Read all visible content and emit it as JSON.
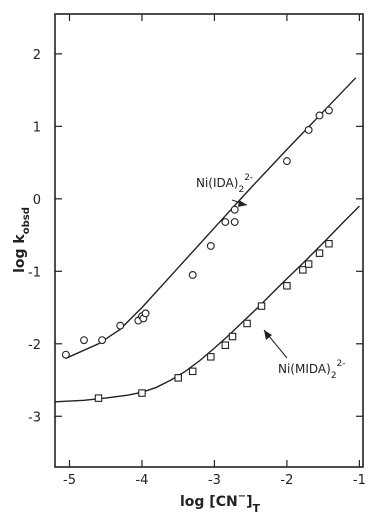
{
  "chart_data": {
    "type": "scatter",
    "xlabel": "log [CN⁻]T",
    "xlabel_main": "log [CN",
    "xlabel_sup": "−",
    "xlabel_close": "]",
    "xlabel_sub": "T",
    "ylabel": "log kobsd",
    "ylabel_main": "log k",
    "ylabel_sub": "obsd",
    "xlim": [
      -5.2,
      -0.95
    ],
    "ylim": [
      -3.7,
      2.55
    ],
    "xticks": [
      -5,
      -4,
      -3,
      -2,
      -1
    ],
    "xtick_labels": [
      "-5",
      "-4",
      "-3",
      "-2",
      "-1"
    ],
    "yticks": [
      -3,
      -2,
      -1,
      0,
      1,
      2
    ],
    "ytick_labels": [
      "-3",
      "-2",
      "-1",
      "0",
      "1",
      "2"
    ],
    "grid": false,
    "series": [
      {
        "name": "Ni(IDA)2^2-",
        "label_main": "Ni(IDA)",
        "label_sub": "2",
        "label_sup": "2-",
        "marker": "circle",
        "points": [
          [
            -5.05,
            -2.15
          ],
          [
            -4.8,
            -1.95
          ],
          [
            -4.55,
            -1.95
          ],
          [
            -4.3,
            -1.75
          ],
          [
            -4.05,
            -1.68
          ],
          [
            -4.0,
            -1.62
          ],
          [
            -3.98,
            -1.65
          ],
          [
            -3.95,
            -1.58
          ],
          [
            -3.3,
            -1.05
          ],
          [
            -3.05,
            -0.65
          ],
          [
            -2.85,
            -0.32
          ],
          [
            -2.72,
            -0.32
          ],
          [
            -2.72,
            -0.15
          ],
          [
            -2.0,
            0.52
          ],
          [
            -1.7,
            0.95
          ],
          [
            -1.55,
            1.15
          ],
          [
            -1.42,
            1.22
          ]
        ],
        "fit_line": [
          [
            -5.05,
            -2.2
          ],
          [
            -4.6,
            -2.0
          ],
          [
            -4.3,
            -1.8
          ],
          [
            -4.1,
            -1.6
          ],
          [
            -4.0,
            -1.5
          ],
          [
            -3.5,
            -0.95
          ],
          [
            -3.0,
            -0.4
          ],
          [
            -2.5,
            0.15
          ],
          [
            -2.0,
            0.68
          ],
          [
            -1.5,
            1.2
          ],
          [
            -1.05,
            1.67
          ]
        ]
      },
      {
        "name": "Ni(MIDA)2^2-",
        "label_main": "Ni(MIDA)",
        "label_sub": "2",
        "label_sup": "2-",
        "marker": "square",
        "points": [
          [
            -4.6,
            -2.75
          ],
          [
            -4.0,
            -2.68
          ],
          [
            -3.5,
            -2.47
          ],
          [
            -3.3,
            -2.38
          ],
          [
            -3.05,
            -2.18
          ],
          [
            -2.85,
            -2.02
          ],
          [
            -2.75,
            -1.9
          ],
          [
            -2.55,
            -1.72
          ],
          [
            -2.35,
            -1.48
          ],
          [
            -2.0,
            -1.2
          ],
          [
            -1.78,
            -0.98
          ],
          [
            -1.7,
            -0.9
          ],
          [
            -1.55,
            -0.75
          ],
          [
            -1.42,
            -0.62
          ]
        ],
        "fit_line": [
          [
            -5.2,
            -2.8
          ],
          [
            -4.8,
            -2.78
          ],
          [
            -4.5,
            -2.75
          ],
          [
            -4.2,
            -2.71
          ],
          [
            -4.0,
            -2.67
          ],
          [
            -3.8,
            -2.6
          ],
          [
            -3.6,
            -2.5
          ],
          [
            -3.4,
            -2.38
          ],
          [
            -3.2,
            -2.23
          ],
          [
            -3.0,
            -2.06
          ],
          [
            -2.8,
            -1.88
          ],
          [
            -2.6,
            -1.69
          ],
          [
            -2.4,
            -1.5
          ],
          [
            -2.2,
            -1.3
          ],
          [
            -2.0,
            -1.1
          ],
          [
            -1.8,
            -0.91
          ],
          [
            -1.5,
            -0.61
          ],
          [
            -1.2,
            -0.3
          ],
          [
            -1.0,
            -0.1
          ]
        ]
      }
    ]
  }
}
